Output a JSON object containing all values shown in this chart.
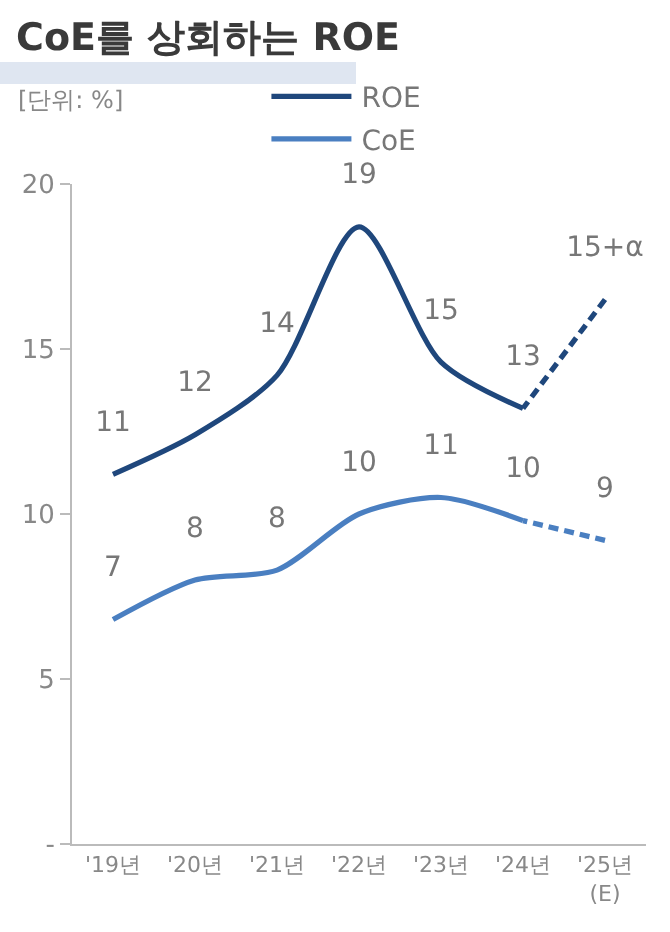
{
  "chart_data": {
    "type": "line",
    "title": "CoE를 상회하는 ROE",
    "ylabel": "[단위: %]",
    "categories": [
      "'19년",
      "'20년",
      "'21년",
      "'22년",
      "'23년",
      "'24년",
      "'25년\n(E)"
    ],
    "series": [
      {
        "name": "ROE",
        "color": "#1f477c",
        "values": [
          11.2,
          12.4,
          14.2,
          18.7,
          14.6,
          13.2,
          null
        ],
        "value_labels": [
          "11",
          "12",
          "14",
          "19",
          "15",
          "13",
          null
        ]
      },
      {
        "name": "CoE",
        "color": "#4a7fc1",
        "values": [
          6.8,
          8.0,
          8.3,
          10.0,
          10.5,
          9.8,
          null
        ],
        "value_labels": [
          "7",
          "8",
          "8",
          "10",
          "11",
          "10",
          null
        ]
      },
      {
        "color": "#1f477c",
        "line_style": "dashed",
        "values": [
          null,
          null,
          null,
          null,
          null,
          13.2,
          16.5
        ],
        "value_labels": [
          null,
          null,
          null,
          null,
          null,
          null,
          "15+α"
        ]
      },
      {
        "color": "#4a7fc1",
        "line_style": "dashed",
        "values": [
          null,
          null,
          null,
          null,
          null,
          9.8,
          9.2
        ],
        "value_labels": [
          null,
          null,
          null,
          null,
          null,
          null,
          "9"
        ]
      }
    ],
    "ylim": [
      0,
      20
    ],
    "yticks": [
      {
        "value": 0,
        "label": "-"
      },
      5,
      10,
      15,
      20
    ],
    "grid": false,
    "legend": "top",
    "line_style": "solid",
    "marker": "none"
  }
}
